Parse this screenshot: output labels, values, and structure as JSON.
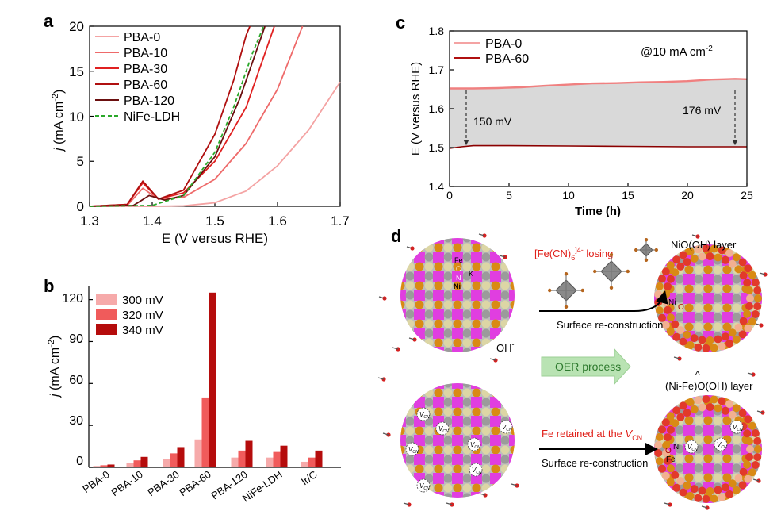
{
  "panels": {
    "a": {
      "letter": "a",
      "ylabel_italic": "j",
      "ylabel_rest": " (mA cm",
      "ylabel_sup": "-2",
      "ylabel_close": ")",
      "xlabel": "E (V versus RHE)",
      "xticks": [
        "1.3",
        "1.4",
        "1.5",
        "1.6",
        "1.7"
      ],
      "yticks": [
        "0",
        "5",
        "10",
        "15",
        "20"
      ],
      "legend": [
        "PBA-0",
        "PBA-10",
        "PBA-30",
        "PBA-60",
        "PBA-120",
        "NiFe-LDH"
      ]
    },
    "b": {
      "letter": "b",
      "ylabel_italic": "j",
      "ylabel_rest": " (mA cm",
      "ylabel_sup": "-2",
      "ylabel_close": ")",
      "yticks": [
        "0",
        "30",
        "60",
        "90",
        "120"
      ],
      "legend": [
        "300 mV",
        "320 mV",
        "340 mV"
      ]
    },
    "c": {
      "letter": "c",
      "ylabel": "E (V versus RHE)",
      "xlabel": "Time (h)",
      "xticks": [
        "0",
        "5",
        "10",
        "15",
        "20",
        "25"
      ],
      "yticks": [
        "1.4",
        "1.5",
        "1.6",
        "1.7",
        "1.8"
      ],
      "legend": [
        "PBA-0",
        "PBA-60"
      ],
      "condition_prefix": "@10 mA cm",
      "condition_sup": "-2",
      "ann_left": "150 mV",
      "ann_right": "176 mV"
    },
    "d": {
      "letter": "d",
      "losing_prefix": "[Fe(CN)",
      "losing_sub": "6",
      "losing_sup": "]4-",
      "losing_suffix": " losing",
      "surface1": "Surface re-construction",
      "surface2": "Surface re-construction",
      "nioh_layer": "NiO(OH) layer",
      "nife_layer": "(Ni-Fe)O(OH) layer",
      "oer": "OER process",
      "oh_label": "OH",
      "oh_sup": "-",
      "fe_retained_prefix": "Fe retained at the ",
      "fe_retained_v": "V",
      "fe_retained_sub": "CN",
      "lbl_fe": "Fe",
      "lbl_c": "C",
      "lbl_n": "N",
      "lbl_ni": "Ni",
      "lbl_k": "K",
      "lbl_ni2": "Ni",
      "lbl_o2": "O",
      "lbl_ni3": "Ni",
      "lbl_o3": "O",
      "lbl_fe3": "Fe",
      "vcn_main": "V",
      "vcn_sub": "CN",
      "caret": "^"
    }
  },
  "colors": {
    "pba0": "#f4a3a3",
    "pba10": "#ee6a6a",
    "pba30": "#e02020",
    "pba60": "#b01010",
    "pba120": "#6b0f0f",
    "nife": "#2aa82a",
    "bar300": "#f6aaaa",
    "bar320": "#f05b5b",
    "bar340": "#b50c0c",
    "fill_c": "#d9d9d9",
    "magenta": "#e03ee0",
    "orange": "#d98a14",
    "grey": "#9b9b9b",
    "beige": "#dcd6a5",
    "red_o": "#e23a2a"
  },
  "chart_data": [
    {
      "type": "line",
      "title": "a",
      "xlabel": "E (V versus RHE)",
      "ylabel": "j (mA cm-2)",
      "xlim": [
        1.3,
        1.7
      ],
      "ylim": [
        0,
        20
      ],
      "series": [
        {
          "name": "PBA-0",
          "x": [
            1.3,
            1.4,
            1.45,
            1.5,
            1.55,
            1.6,
            1.65,
            1.7
          ],
          "y": [
            0,
            0,
            0.05,
            0.4,
            1.7,
            4.5,
            8.5,
            13.8
          ]
        },
        {
          "name": "PBA-10",
          "x": [
            1.3,
            1.36,
            1.385,
            1.41,
            1.45,
            1.5,
            1.55,
            1.6,
            1.64
          ],
          "y": [
            0,
            0.1,
            2.0,
            0.8,
            1.0,
            3.0,
            7.0,
            13.0,
            20
          ]
        },
        {
          "name": "PBA-30",
          "x": [
            1.3,
            1.36,
            1.385,
            1.41,
            1.45,
            1.5,
            1.55,
            1.58,
            1.595
          ],
          "y": [
            0,
            0.2,
            2.6,
            0.8,
            1.5,
            5.0,
            11.0,
            17.0,
            20
          ]
        },
        {
          "name": "PBA-60",
          "x": [
            1.3,
            1.36,
            1.385,
            1.41,
            1.45,
            1.5,
            1.53,
            1.55,
            1.556
          ],
          "y": [
            0,
            0.2,
            2.8,
            0.8,
            1.8,
            8.0,
            14.0,
            19.0,
            20
          ]
        },
        {
          "name": "PBA-120",
          "x": [
            1.3,
            1.37,
            1.395,
            1.42,
            1.45,
            1.5,
            1.54,
            1.57,
            1.58
          ],
          "y": [
            0,
            0.1,
            1.2,
            0.7,
            1.2,
            5.5,
            12.0,
            18.0,
            20
          ]
        },
        {
          "name": "NiFe-LDH",
          "x": [
            1.3,
            1.4,
            1.45,
            1.5,
            1.53,
            1.56,
            1.578
          ],
          "y": [
            0,
            0.1,
            1.2,
            6.0,
            11.0,
            17.0,
            20
          ]
        }
      ]
    },
    {
      "type": "bar",
      "title": "b",
      "ylabel": "j (mA cm-2)",
      "ylim": [
        0,
        130
      ],
      "categories": [
        "PBA-0",
        "PBA-10",
        "PBA-30",
        "PBA-60",
        "PBA-120",
        "NiFe-LDH",
        "Ir/C"
      ],
      "series": [
        {
          "name": "300 mV",
          "values": [
            1,
            3,
            6,
            20,
            7,
            7,
            4
          ]
        },
        {
          "name": "320 mV",
          "values": [
            1.5,
            5,
            10,
            50,
            12,
            11,
            7
          ]
        },
        {
          "name": "340 mV",
          "values": [
            2,
            7.5,
            14.5,
            125,
            19,
            15.5,
            12
          ]
        }
      ]
    },
    {
      "type": "line",
      "title": "c",
      "xlabel": "Time (h)",
      "ylabel": "E (V versus RHE)",
      "xlim": [
        0,
        25
      ],
      "ylim": [
        1.4,
        1.8
      ],
      "series": [
        {
          "name": "PBA-0",
          "x": [
            0,
            2,
            4,
            6,
            8,
            10,
            12,
            14,
            16,
            18,
            20,
            22,
            23,
            24,
            25
          ],
          "y": [
            1.652,
            1.652,
            1.653,
            1.655,
            1.659,
            1.662,
            1.665,
            1.666,
            1.668,
            1.669,
            1.671,
            1.675,
            1.676,
            1.677,
            1.676
          ]
        },
        {
          "name": "PBA-60",
          "x": [
            0,
            1,
            2,
            5,
            10,
            15,
            20,
            25
          ],
          "y": [
            1.498,
            1.502,
            1.505,
            1.505,
            1.504,
            1.503,
            1.502,
            1.502
          ]
        }
      ]
    }
  ]
}
